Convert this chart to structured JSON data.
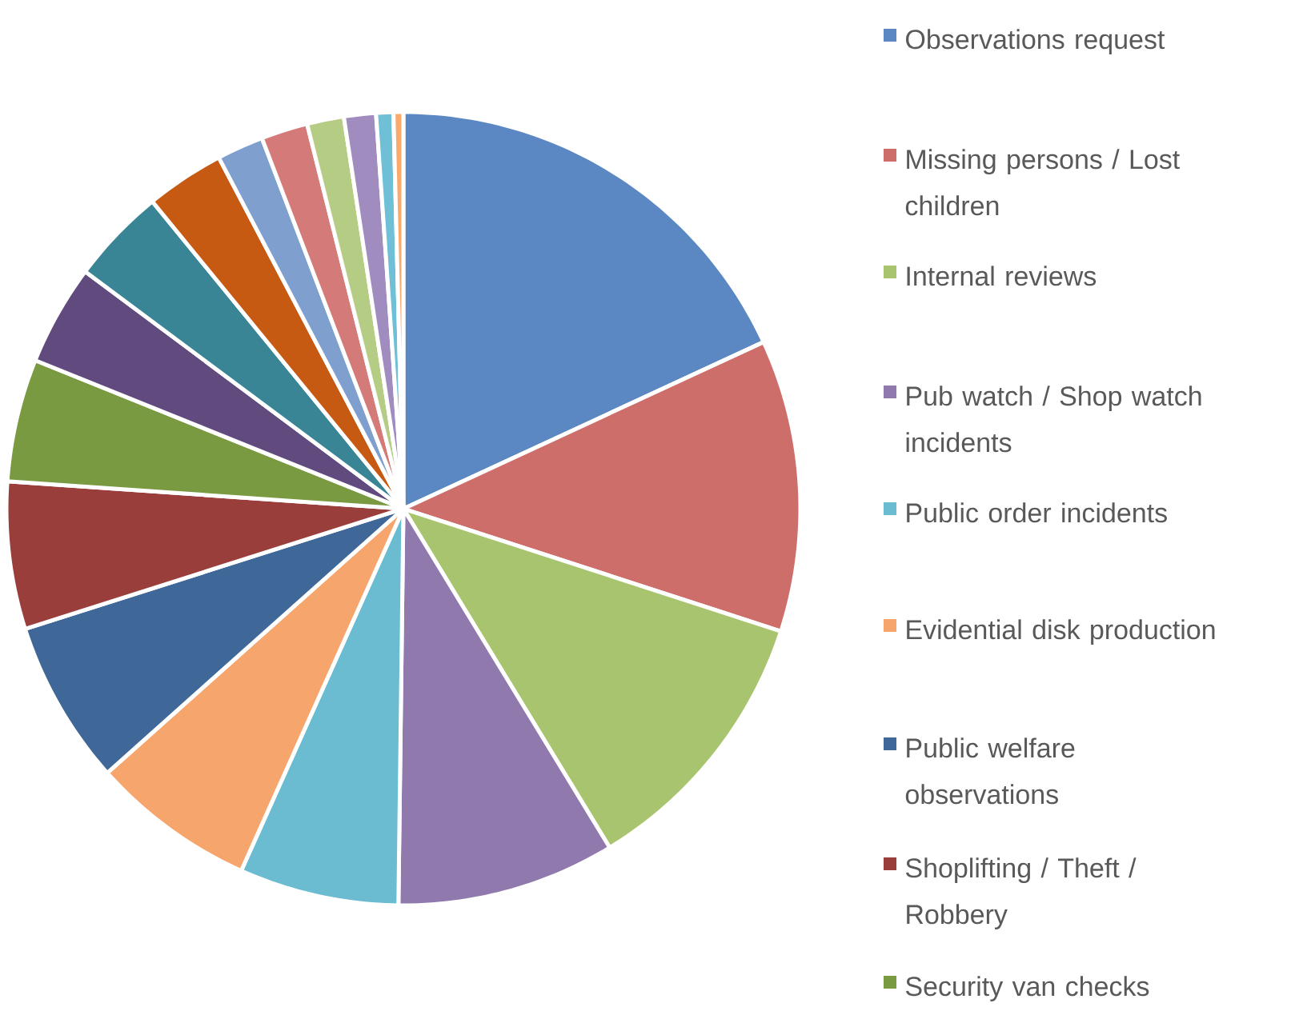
{
  "chart_data": {
    "type": "pie",
    "categories": [
      "Observations request",
      "Missing persons / Lost children",
      "Internal reviews",
      "Pub watch / Shop watch incidents",
      "Public order incidents",
      "Evidential disk production",
      "Public welfare observations",
      "Shoplifting / Theft / Robbery",
      "Security van checks",
      null,
      null,
      null,
      null,
      null,
      null,
      null,
      null,
      null
    ],
    "values": [
      18.1,
      11.9,
      11.3,
      8.9,
      6.5,
      6.7,
      6.7,
      6.0,
      5.0,
      4.1,
      3.9,
      3.2,
      1.9,
      1.9,
      1.5,
      1.3,
      0.7,
      0.4
    ],
    "colors": [
      "#5b88c2",
      "#cd6e6b",
      "#a9c46e",
      "#9079ad",
      "#6cbcd1",
      "#f6a56c",
      "#3f6898",
      "#9a3e3c",
      "#7a9a42",
      "#614b7e",
      "#3a8595",
      "#c65a12",
      "#7f9fcf",
      "#d47a78",
      "#b5cc85",
      "#a08cbe",
      "#6fc0d6",
      "#f9ab6e"
    ],
    "legend": "right"
  }
}
